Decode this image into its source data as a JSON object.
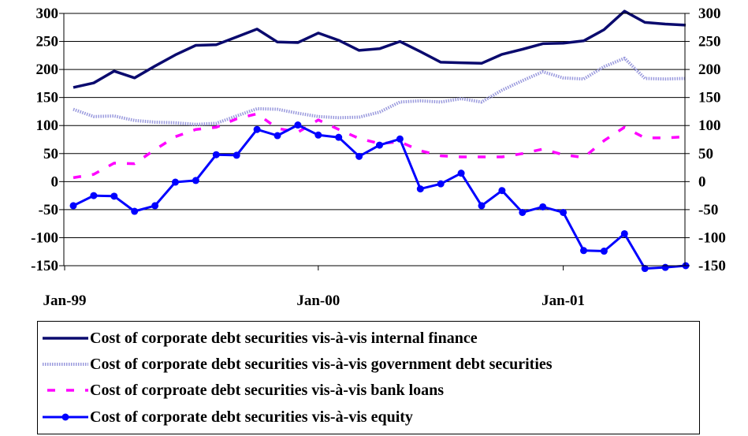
{
  "chart_data": {
    "type": "line",
    "x": [
      "Jan-99",
      "Feb-99",
      "Mar-99",
      "Apr-99",
      "May-99",
      "Jun-99",
      "Jul-99",
      "Aug-99",
      "Sep-99",
      "Oct-99",
      "Nov-99",
      "Dec-99",
      "Jan-00",
      "Feb-00",
      "Mar-00",
      "Apr-00",
      "May-00",
      "Jun-00",
      "Jul-00",
      "Aug-00",
      "Sep-00",
      "Oct-00",
      "Nov-00",
      "Dec-00",
      "Jan-01",
      "Feb-01",
      "Mar-01",
      "Apr-01",
      "May-01",
      "Jun-01",
      "Jul-01"
    ],
    "x_ticks": [
      "Jan-99",
      "Jan-00",
      "Jan-01"
    ],
    "ylim": [
      -150,
      300
    ],
    "y_ticks": [
      -150,
      -100,
      -50,
      0,
      50,
      100,
      150,
      200,
      250,
      300
    ],
    "grid": "horizontal",
    "series": [
      {
        "name": "Cost of corporate debt securities vis-à-vis internal finance",
        "color": "#0a0a6e",
        "style": "solid-thick",
        "values": [
          168,
          176,
          197,
          185,
          206,
          226,
          243,
          244,
          258,
          272,
          249,
          248,
          265,
          252,
          234,
          237,
          250,
          232,
          213,
          212,
          211,
          227,
          236,
          246,
          247,
          251,
          271,
          304,
          284,
          281,
          279
        ]
      },
      {
        "name": "Cost of corporate debt securities vis-à-vis government debt securities",
        "color": "#9999dd",
        "style": "hatched",
        "values": [
          129,
          116,
          117,
          109,
          106,
          105,
          102,
          104,
          117,
          130,
          129,
          122,
          116,
          114,
          115,
          124,
          142,
          144,
          142,
          148,
          142,
          163,
          180,
          196,
          185,
          183,
          205,
          220,
          184,
          183,
          184
        ]
      },
      {
        "name": "Cost of corproate debt securities vis-à-vis bank loans",
        "color": "#ff00ff",
        "style": "dashed",
        "values": [
          7,
          13,
          33,
          32,
          57,
          80,
          93,
          97,
          112,
          121,
          95,
          88,
          110,
          93,
          77,
          68,
          71,
          55,
          46,
          44,
          44,
          44,
          50,
          58,
          48,
          43,
          73,
          97,
          78,
          78,
          80
        ]
      },
      {
        "name": "Cost of corporate debt securities vis-à-vis equity",
        "color": "#0000ff",
        "style": "solid-marker",
        "values": [
          -43,
          -25,
          -26,
          -53,
          -43,
          -1,
          2,
          48,
          47,
          93,
          82,
          101,
          83,
          79,
          45,
          65,
          76,
          -13,
          -4,
          15,
          -43,
          -16,
          -55,
          -45,
          -55,
          -123,
          -124,
          -93,
          -155,
          -153,
          -150
        ]
      }
    ]
  }
}
